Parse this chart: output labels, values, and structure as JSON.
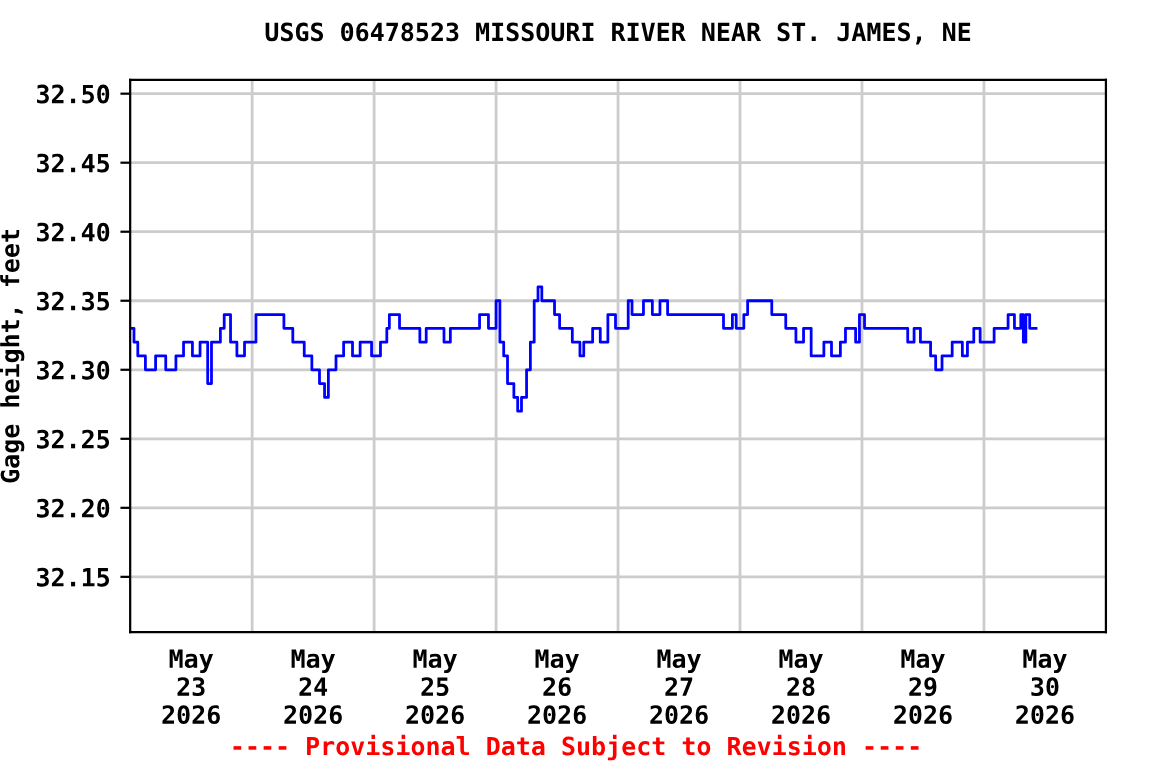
{
  "chart_data": {
    "type": "step",
    "title": "USGS 06478523 MISSOURI RIVER NEAR ST. JAMES, NE",
    "ylabel": "Gage height, feet",
    "annotations": [
      "---- Provisional Data Subject to Revision ----"
    ],
    "x": [
      "2026-05-23T00:00",
      "2026-05-23T00:45",
      "2026-05-23T01:30",
      "2026-05-23T03:00",
      "2026-05-23T05:00",
      "2026-05-23T07:00",
      "2026-05-23T09:00",
      "2026-05-23T10:30",
      "2026-05-23T12:15",
      "2026-05-23T13:45",
      "2026-05-23T15:15",
      "2026-05-23T16:00",
      "2026-05-23T17:45",
      "2026-05-23T18:30",
      "2026-05-23T19:45",
      "2026-05-23T21:00",
      "2026-05-23T22:30",
      "2026-05-24T00:00",
      "2026-05-24T00:45",
      "2026-05-24T05:30",
      "2026-05-24T06:15",
      "2026-05-24T08:00",
      "2026-05-24T10:15",
      "2026-05-24T11:45",
      "2026-05-24T13:15",
      "2026-05-24T14:15",
      "2026-05-24T15:00",
      "2026-05-24T16:30",
      "2026-05-24T18:00",
      "2026-05-24T19:45",
      "2026-05-24T21:15",
      "2026-05-24T23:30",
      "2026-05-25T01:15",
      "2026-05-25T02:30",
      "2026-05-25T03:00",
      "2026-05-25T05:00",
      "2026-05-25T09:00",
      "2026-05-25T10:15",
      "2026-05-25T13:45",
      "2026-05-25T15:00",
      "2026-05-25T20:00",
      "2026-05-25T20:45",
      "2026-05-25T22:30",
      "2026-05-26T00:00",
      "2026-05-26T00:45",
      "2026-05-26T01:30",
      "2026-05-26T02:15",
      "2026-05-26T03:30",
      "2026-05-26T04:15",
      "2026-05-26T05:00",
      "2026-05-26T06:00",
      "2026-05-26T06:45",
      "2026-05-26T07:30",
      "2026-05-26T08:15",
      "2026-05-26T09:00",
      "2026-05-26T11:30",
      "2026-05-26T12:30",
      "2026-05-26T15:00",
      "2026-05-26T16:30",
      "2026-05-26T17:15",
      "2026-05-26T19:00",
      "2026-05-26T20:30",
      "2026-05-26T22:00",
      "2026-05-26T23:30",
      "2026-05-27T02:00",
      "2026-05-27T02:45",
      "2026-05-27T05:00",
      "2026-05-27T06:45",
      "2026-05-27T08:15",
      "2026-05-27T09:45",
      "2026-05-27T20:45",
      "2026-05-27T22:30",
      "2026-05-27T23:15",
      "2026-05-28T00:45",
      "2026-05-28T01:30",
      "2026-05-28T06:15",
      "2026-05-28T09:00",
      "2026-05-28T11:00",
      "2026-05-28T12:30",
      "2026-05-28T14:00",
      "2026-05-28T16:30",
      "2026-05-28T18:00",
      "2026-05-28T19:45",
      "2026-05-28T20:45",
      "2026-05-28T22:45",
      "2026-05-28T23:30",
      "2026-05-29T00:30",
      "2026-05-29T08:15",
      "2026-05-29T09:00",
      "2026-05-29T10:15",
      "2026-05-29T11:30",
      "2026-05-29T13:30",
      "2026-05-29T14:30",
      "2026-05-29T15:45",
      "2026-05-29T17:45",
      "2026-05-29T19:45",
      "2026-05-29T20:45",
      "2026-05-29T22:00",
      "2026-05-29T23:15",
      "2026-05-30T02:00",
      "2026-05-30T04:45",
      "2026-05-30T06:00",
      "2026-05-30T07:15",
      "2026-05-30T07:45",
      "2026-05-30T08:15",
      "2026-05-30T09:00",
      "2026-05-30T10:15"
    ],
    "series": [
      {
        "color": "#0000ff",
        "values": [
          32.33,
          32.32,
          32.31,
          32.3,
          32.31,
          32.3,
          32.31,
          32.32,
          32.31,
          32.32,
          32.29,
          32.32,
          32.33,
          32.34,
          32.32,
          32.31,
          32.32,
          32.32,
          32.34,
          32.34,
          32.33,
          32.32,
          32.31,
          32.3,
          32.29,
          32.28,
          32.3,
          32.31,
          32.32,
          32.31,
          32.32,
          32.31,
          32.32,
          32.33,
          32.34,
          32.33,
          32.32,
          32.33,
          32.32,
          32.33,
          32.33,
          32.34,
          32.33,
          32.35,
          32.32,
          32.31,
          32.29,
          32.28,
          32.27,
          32.28,
          32.3,
          32.32,
          32.35,
          32.36,
          32.35,
          32.34,
          32.33,
          32.32,
          32.31,
          32.32,
          32.33,
          32.32,
          32.34,
          32.33,
          32.35,
          32.34,
          32.35,
          32.34,
          32.35,
          32.34,
          32.33,
          32.34,
          32.33,
          32.34,
          32.35,
          32.34,
          32.33,
          32.32,
          32.33,
          32.31,
          32.32,
          32.31,
          32.32,
          32.33,
          32.32,
          32.34,
          32.33,
          32.33,
          32.32,
          32.33,
          32.32,
          32.31,
          32.3,
          32.31,
          32.32,
          32.31,
          32.32,
          32.33,
          32.32,
          32.33,
          32.34,
          32.33,
          32.34,
          32.32,
          32.34,
          32.33,
          32.33
        ]
      }
    ],
    "xlim": [
      "2026-05-23T00:00",
      "2026-05-31T00:00"
    ],
    "xticks": [
      {
        "value": "2026-05-23T12:00",
        "label": "May\n23\n2026"
      },
      {
        "value": "2026-05-24T00:00",
        "label": null
      },
      {
        "value": "2026-05-24T12:00",
        "label": "May\n24\n2026"
      },
      {
        "value": "2026-05-25T00:00",
        "label": null
      },
      {
        "value": "2026-05-25T12:00",
        "label": "May\n25\n2026"
      },
      {
        "value": "2026-05-26T00:00",
        "label": null
      },
      {
        "value": "2026-05-26T12:00",
        "label": "May\n26\n2026"
      },
      {
        "value": "2026-05-27T00:00",
        "label": null
      },
      {
        "value": "2026-05-27T12:00",
        "label": "May\n27\n2026"
      },
      {
        "value": "2026-05-28T00:00",
        "label": null
      },
      {
        "value": "2026-05-28T12:00",
        "label": "May\n28\n2026"
      },
      {
        "value": "2026-05-29T00:00",
        "label": null
      },
      {
        "value": "2026-05-29T12:00",
        "label": "May\n29\n2026"
      },
      {
        "value": "2026-05-30T00:00",
        "label": null
      },
      {
        "value": "2026-05-30T12:00",
        "label": "May\n30\n2026"
      }
    ],
    "ylim": [
      32.11,
      32.51
    ],
    "yticks": [
      {
        "value": 32.15,
        "label": "32.15"
      },
      {
        "value": 32.2,
        "label": "32.20"
      },
      {
        "value": 32.25,
        "label": "32.25"
      },
      {
        "value": 32.3,
        "label": "32.30"
      },
      {
        "value": 32.35,
        "label": "32.35"
      },
      {
        "value": 32.4,
        "label": "32.40"
      },
      {
        "value": 32.45,
        "label": "32.45"
      },
      {
        "value": 32.5,
        "label": "32.50"
      }
    ],
    "grid": true,
    "legend": false
  }
}
